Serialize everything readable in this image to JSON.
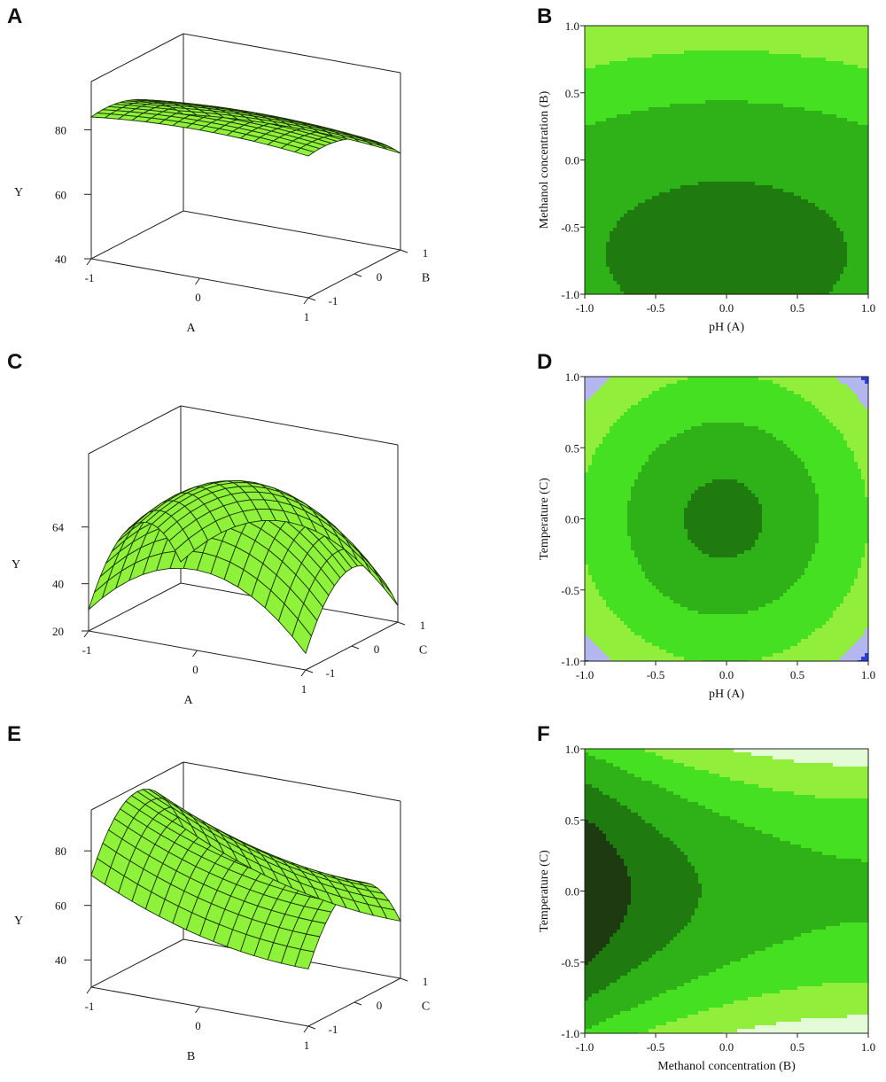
{
  "panel_labels": [
    "A",
    "B",
    "C",
    "D",
    "E",
    "F"
  ],
  "chart_data": [
    {
      "panel": "A",
      "type": "surface",
      "x_label": "A",
      "y_label": "B",
      "z_label": "Y",
      "x_ticks": [
        "-1",
        "0",
        "1"
      ],
      "y_ticks": [
        "-1",
        "0",
        "1"
      ],
      "z_ticks": [
        "40",
        "60",
        "80"
      ],
      "zlim": [
        40,
        95
      ],
      "model": {
        "c": 84,
        "x1": 0,
        "x2": -2,
        "y1": -7,
        "y2": -5,
        "xy": 0
      },
      "colors": {
        "surface": "#8ef23a",
        "grid": "#1a3308"
      }
    },
    {
      "panel": "B",
      "type": "contour",
      "xlabel": "pH (A)",
      "ylabel": "Methanol concentration (B)",
      "x_ticks": [
        "-1.0",
        "-0.5",
        "0.0",
        "0.5",
        "1.0"
      ],
      "y_ticks": [
        "-1.0",
        "-0.5",
        "0.0",
        "0.5",
        "1.0"
      ],
      "xlim": [
        -1,
        1
      ],
      "ylim": [
        -1,
        1
      ],
      "levels": [
        85,
        80,
        75,
        70
      ],
      "colors": [
        "#1f7a0f",
        "#2fb218",
        "#45e021",
        "#91ef3b",
        "#e3fbd6"
      ],
      "model": {
        "c": 84,
        "x1": 0,
        "x2": -2,
        "y1": -7,
        "y2": -5,
        "xy": 0
      }
    },
    {
      "panel": "C",
      "type": "surface",
      "x_label": "A",
      "y_label": "C",
      "z_label": "Y",
      "x_ticks": [
        "-1",
        "0",
        "1"
      ],
      "y_ticks": [
        "-1",
        "0",
        "1"
      ],
      "z_ticks": [
        "20",
        "40",
        "64"
      ],
      "zlim": [
        20,
        95
      ],
      "model": {
        "c": 80,
        "x1": -1,
        "x2": -26,
        "y1": 0,
        "y2": -26,
        "xy": 0
      },
      "colors": {
        "surface": "#8ef23a",
        "grid": "#1a3308"
      }
    },
    {
      "panel": "D",
      "type": "contour",
      "xlabel": "pH (A)",
      "ylabel": "Temperature (C)",
      "x_ticks": [
        "-1.0",
        "-0.5",
        "0.0",
        "0.5",
        "1.0"
      ],
      "y_ticks": [
        "-1.0",
        "-0.5",
        "0.0",
        "0.5",
        "1.0"
      ],
      "xlim": [
        -1,
        1
      ],
      "ylim": [
        -1,
        1
      ],
      "levels": [
        78,
        68,
        53,
        38,
        30
      ],
      "colors": [
        "#1f7a0f",
        "#2fb218",
        "#45e021",
        "#91ef3b",
        "#b4b6f0",
        "#2b3ddc"
      ],
      "model": {
        "c": 80,
        "x1": -1,
        "x2": -26,
        "y1": 0,
        "y2": -26,
        "xy": 0
      }
    },
    {
      "panel": "E",
      "type": "surface",
      "x_label": "B",
      "y_label": "C",
      "z_label": "Y",
      "x_ticks": [
        "-1",
        "0",
        "1"
      ],
      "y_ticks": [
        "-1",
        "0",
        "1"
      ],
      "z_ticks": [
        "40",
        "60",
        "80"
      ],
      "zlim": [
        30,
        95
      ],
      "model": {
        "c": 78,
        "x1": -10,
        "x2": 5,
        "y1": 0,
        "y2": -22,
        "xy": 0
      },
      "colors": {
        "surface": "#8ef23a",
        "grid": "#1a3308"
      }
    },
    {
      "panel": "F",
      "type": "contour",
      "xlabel": "Methanol concentration (B)",
      "ylabel": "Temperature (C)",
      "x_ticks": [
        "-1.0",
        "-0.5",
        "0.0",
        "0.5",
        "1.0"
      ],
      "y_ticks": [
        "-1.0",
        "-0.5",
        "0.0",
        "0.5",
        "1.0"
      ],
      "xlim": [
        -1,
        1
      ],
      "ylim": [
        -1,
        1
      ],
      "levels": [
        87,
        80,
        72,
        64,
        56
      ],
      "colors": [
        "#1d3a10",
        "#1f7a0f",
        "#2fb218",
        "#45e021",
        "#91ef3b",
        "#e3fbd6"
      ],
      "model": {
        "c": 78,
        "x1": -10,
        "x2": 5,
        "y1": 0,
        "y2": -22,
        "xy": 0
      }
    }
  ]
}
